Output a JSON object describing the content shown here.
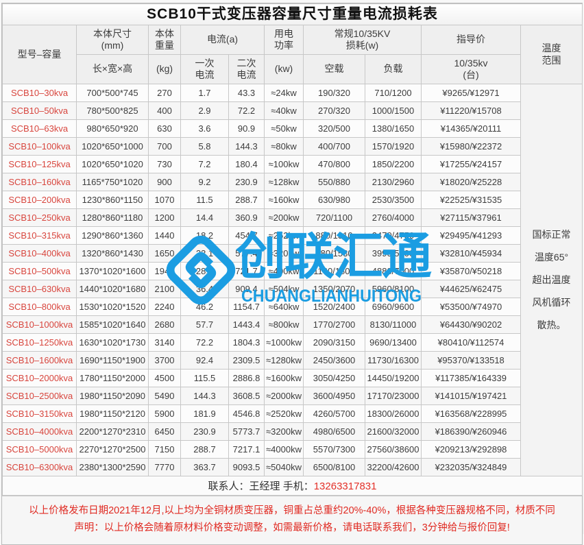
{
  "title": "SCB10干式变压器容量尺寸重量电流损耗表",
  "headers": {
    "model": "型号–容量",
    "dims_top": "本体尺寸\n(mm)",
    "dims_sub": "长×宽×高",
    "weight_top": "本体\n重量",
    "weight_sub": "(kg)",
    "current_group": "电流(a)",
    "current_primary": "一次\n电流",
    "current_secondary": "二次\n电流",
    "power_top": "用电\n功率",
    "power_sub": "(kw)",
    "loss_group": "常规10/35KV\n损耗(w)",
    "loss_noload": "空载",
    "loss_load": "负载",
    "price_top": "指导价",
    "price_sub": "10/35kv\n(台)",
    "temp": "温度\n范围"
  },
  "temp_note": "国标正常\n温度65°\n超出温度\n风机循环\n散热。",
  "table": {
    "rows": [
      [
        "SCB10–30kva",
        "700*500*745",
        "270",
        "1.7",
        "43.3",
        "≈24kw",
        "190/320",
        "710/1200",
        "¥9265/¥12971"
      ],
      [
        "SCB10–50kva",
        "780*500*825",
        "400",
        "2.9",
        "72.2",
        "≈40kw",
        "270/320",
        "1000/1500",
        "¥11220/¥15708"
      ],
      [
        "SCB10–63kva",
        "980*650*920",
        "630",
        "3.6",
        "90.9",
        "≈50kw",
        "320/500",
        "1380/1650",
        "¥14365/¥20111"
      ],
      [
        "SCB10–100kva",
        "1020*650*1000",
        "700",
        "5.8",
        "144.3",
        "≈80kw",
        "400/700",
        "1570/1920",
        "¥15980/¥22372"
      ],
      [
        "SCB10–125kva",
        "1020*650*1020",
        "730",
        "7.2",
        "180.4",
        "≈100kw",
        "470/800",
        "1850/2200",
        "¥17255/¥24157"
      ],
      [
        "SCB10–160kva",
        "1165*750*1020",
        "900",
        "9.2",
        "230.9",
        "≈128kw",
        "550/880",
        "2130/2960",
        "¥18020/¥25228"
      ],
      [
        "SCB10–200kva",
        "1230*860*1150",
        "1070",
        "11.5",
        "288.7",
        "≈160kw",
        "630/980",
        "2530/3500",
        "¥22525/¥31535"
      ],
      [
        "SCB10–250kva",
        "1280*860*1180",
        "1200",
        "14.4",
        "360.9",
        "≈200kw",
        "720/1100",
        "2760/4000",
        "¥27115/¥37961"
      ],
      [
        "SCB10–315kva",
        "1290*860*1360",
        "1440",
        "18.2",
        "454.7",
        "≈252kw",
        "880/1310",
        "3470/4750",
        "¥29495/¥41293"
      ],
      [
        "SCB10–400kva",
        "1320*860*1430",
        "1650",
        "23.1",
        "577.4",
        "≈320kw",
        "980/1530",
        "3990/5300",
        "¥32810/¥45934"
      ],
      [
        "SCB10–500kva",
        "1370*1020*1600",
        "1940",
        "28.9",
        "721.7",
        "≈400kw",
        "1160/1800",
        "4880/7000",
        "¥35870/¥50218"
      ],
      [
        "SCB10–630kva",
        "1440*1020*1680",
        "2100",
        "36.4",
        "909.4",
        "≈504kw",
        "1350/2070",
        "5960/8100",
        "¥44625/¥62475"
      ],
      [
        "SCB10–800kva",
        "1530*1020*1520",
        "2240",
        "46.2",
        "1154.7",
        "≈640kw",
        "1520/2400",
        "6960/9600",
        "¥53500/¥74970"
      ],
      [
        "SCB10–1000kva",
        "1585*1020*1640",
        "2680",
        "57.7",
        "1443.4",
        "≈800kw",
        "1770/2700",
        "8130/11000",
        "¥64430/¥90202"
      ],
      [
        "SCB10–1250kva",
        "1630*1020*1730",
        "3140",
        "72.2",
        "1804.3",
        "≈1000kw",
        "2090/3150",
        "9690/13400",
        "¥80410/¥112574"
      ],
      [
        "SCB10–1600kva",
        "1690*1150*1900",
        "3700",
        "92.4",
        "2309.5",
        "≈1280kw",
        "2450/3600",
        "11730/16300",
        "¥95370/¥133518"
      ],
      [
        "SCB10–2000kva",
        "1780*1150*2000",
        "4500",
        "115.5",
        "2886.8",
        "≈1600kw",
        "3050/4250",
        "14450/19200",
        "¥117385/¥164339"
      ],
      [
        "SCB10–2500kva",
        "1980*1150*2090",
        "5490",
        "144.3",
        "3608.5",
        "≈2000kw",
        "3600/4950",
        "17170/23000",
        "¥141015/¥197421"
      ],
      [
        "SCB10–3150kva",
        "1980*1150*2120",
        "5900",
        "181.9",
        "4546.8",
        "≈2520kw",
        "4260/5700",
        "18300/26000",
        "¥163568/¥228995"
      ],
      [
        "SCB10–4000kva",
        "2200*1270*2310",
        "6450",
        "230.9",
        "5773.7",
        "≈3200kw",
        "4980/6500",
        "21600/32000",
        "¥186390/¥260946"
      ],
      [
        "SCB10–5000kva",
        "2270*1270*2500",
        "7150",
        "288.7",
        "7217.1",
        "≈4000kw",
        "5570/7300",
        "27560/38600",
        "¥209213/¥292898"
      ],
      [
        "SCB10–6300kva",
        "2380*1300*2590",
        "7770",
        "363.7",
        "9093.5",
        "≈5040kw",
        "6500/8100",
        "32200/42600",
        "¥232035/¥324849"
      ]
    ]
  },
  "contact": {
    "label": "联系人：王经理  手机：",
    "phone": "13263317831"
  },
  "notes": {
    "line1": "以上价格发布日期2021年12月,以上均为全铜材质变压器，铜重占总重约20%-40%，根据各种变压器规格不同，材质不同",
    "line2": "声明：以上价格会随着原材料价格变动调整，如需最新价格，请电话联系我们，3分钟给与报价回复!"
  },
  "watermark": {
    "cn": "创联汇通",
    "en": "CHUANGLIANHUITONG",
    "color": "#1b9de2"
  },
  "colors": {
    "model_red": "#d8453d",
    "note_red": "#e02a22",
    "header_bg": "#efefef",
    "border": "#c7c7c7"
  }
}
